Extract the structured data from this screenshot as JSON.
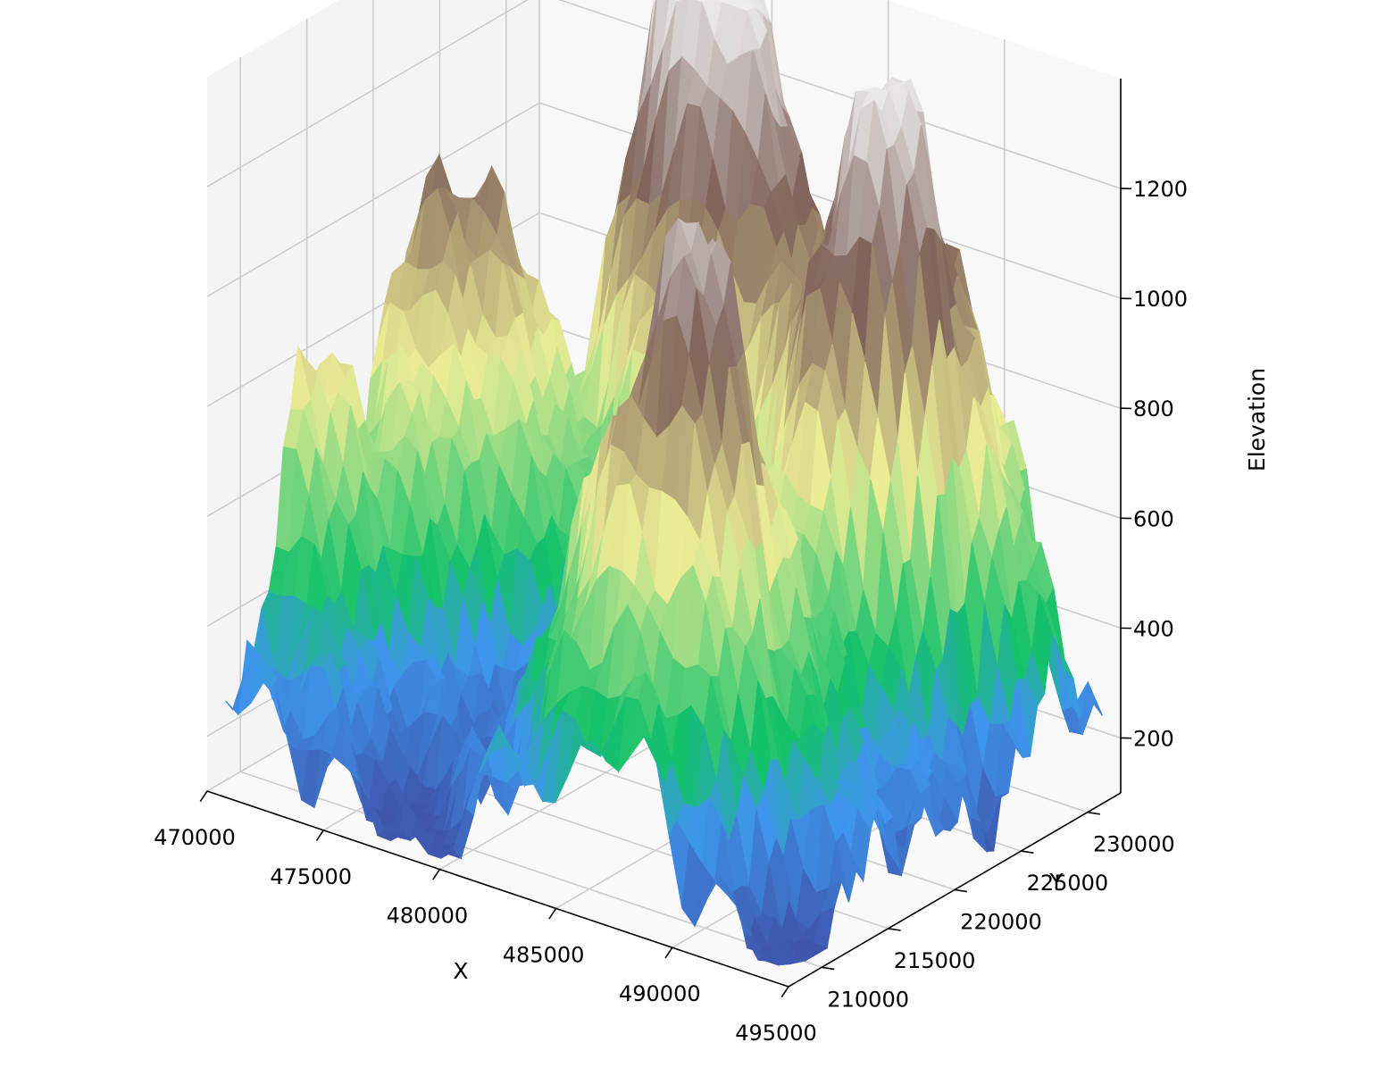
{
  "chart_data": {
    "type": "surface3d",
    "title": "",
    "xlabel": "X",
    "ylabel": "Y",
    "zlabel": "Elevation",
    "xlim": [
      470000,
      495000
    ],
    "ylim": [
      207500,
      232500
    ],
    "zlim": [
      100,
      1400
    ],
    "x_ticks": [
      470000,
      475000,
      480000,
      485000,
      490000,
      495000
    ],
    "y_ticks": [
      210000,
      215000,
      220000,
      225000,
      230000
    ],
    "z_ticks": [
      200,
      400,
      600,
      800,
      1000,
      1200
    ],
    "x_tick_labels": [
      "470000",
      "475000",
      "480000",
      "485000",
      "490000",
      "495000"
    ],
    "y_tick_labels": [
      "210000",
      "215000",
      "220000",
      "225000",
      "230000"
    ],
    "z_tick_labels": [
      "200",
      "400",
      "600",
      "800",
      "1000",
      "1200"
    ],
    "colormap": "terrain",
    "elevation_range": [
      110,
      1390
    ],
    "grid": true,
    "pane_color": "#f2f2f2",
    "peaks": [
      {
        "x": 478500,
        "y": 230000,
        "elevation": 1390
      },
      {
        "x": 472500,
        "y": 222500,
        "elevation": 1060
      },
      {
        "x": 482000,
        "y": 228000,
        "elevation": 1000
      },
      {
        "x": 488500,
        "y": 224500,
        "elevation": 1130
      },
      {
        "x": 489500,
        "y": 228500,
        "elevation": 1050
      },
      {
        "x": 485500,
        "y": 215000,
        "elevation": 900
      },
      {
        "x": 488000,
        "y": 213500,
        "elevation": 830
      },
      {
        "x": 470500,
        "y": 214000,
        "elevation": 780
      }
    ],
    "valleys": [
      {
        "x": 478000,
        "y": 210000,
        "elevation": 130
      },
      {
        "x": 493000,
        "y": 224000,
        "elevation": 170
      },
      {
        "x": 494500,
        "y": 209500,
        "elevation": 180
      }
    ]
  }
}
